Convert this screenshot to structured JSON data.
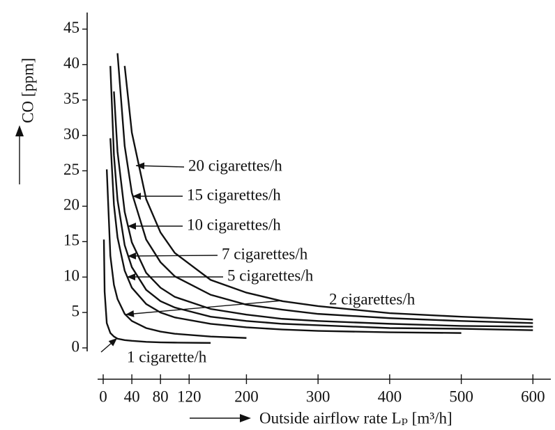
{
  "chart_data": {
    "type": "line",
    "x_label": "Outside airflow rate Lₚ [m³/h]",
    "y_label": "CO [ppm]",
    "x": [
      1,
      2,
      5,
      10,
      15,
      20,
      30,
      40,
      60,
      80,
      100,
      150,
      200,
      250,
      300,
      400,
      500,
      600
    ],
    "series": [
      {
        "name": "20 cigarettes/h",
        "color": "#111111",
        "values": [
          null,
          null,
          null,
          null,
          null,
          null,
          39.8,
          30.4,
          21,
          16.3,
          13.4,
          9.6,
          7.8,
          6.6,
          5.9,
          4.9,
          4.4,
          4.0
        ]
      },
      {
        "name": "15 cigarettes/h",
        "color": "#111111",
        "values": [
          null,
          null,
          null,
          null,
          null,
          41.6,
          28.5,
          21.9,
          15.3,
          12.1,
          10.1,
          7.5,
          6.1,
          5.4,
          4.8,
          4.2,
          3.8,
          3.5
        ]
      },
      {
        "name": "10 cigarettes/h",
        "color": "#111111",
        "values": [
          null,
          null,
          null,
          null,
          36.2,
          27.7,
          19.2,
          14.9,
          10.6,
          8.5,
          7.2,
          5.5,
          4.7,
          4.1,
          3.8,
          3.4,
          3.1,
          3.0
        ]
      },
      {
        "name": "7 cigarettes/h",
        "color": "#111111",
        "values": [
          null,
          null,
          null,
          39.8,
          27.2,
          20.9,
          14.5,
          11.4,
          8.2,
          6.6,
          5.7,
          4.4,
          3.8,
          3.4,
          3.2,
          2.8,
          2.7,
          2.5
        ]
      },
      {
        "name": "5 cigarettes/h",
        "color": "#111111",
        "values": [
          null,
          null,
          null,
          29.6,
          20.2,
          15.6,
          10.9,
          8.5,
          6.2,
          5.0,
          4.3,
          3.4,
          2.9,
          2.6,
          2.4,
          2.2,
          2.1,
          null
        ]
      },
      {
        "name": "2 cigarettes/h",
        "color": "#111111",
        "values": [
          null,
          null,
          25.2,
          13.0,
          8.9,
          6.9,
          4.8,
          3.8,
          2.8,
          2.3,
          2.0,
          1.6,
          1.4,
          null,
          null,
          null,
          null,
          null
        ]
      },
      {
        "name": "1 cigarette/h",
        "color": "#111111",
        "values": [
          15.3,
          7.95,
          3.5,
          2.1,
          1.6,
          1.3,
          1.1,
          1.0,
          0.85,
          0.78,
          0.75,
          0.7,
          null,
          null,
          null,
          null,
          null,
          null
        ]
      }
    ],
    "xlim": [
      0,
      625
    ],
    "ylim": [
      0,
      47
    ],
    "xticks": [
      0,
      40,
      80,
      120,
      200,
      300,
      400,
      500,
      600
    ],
    "yticks": [
      0,
      5,
      10,
      15,
      20,
      25,
      30,
      35,
      40,
      45
    ]
  }
}
